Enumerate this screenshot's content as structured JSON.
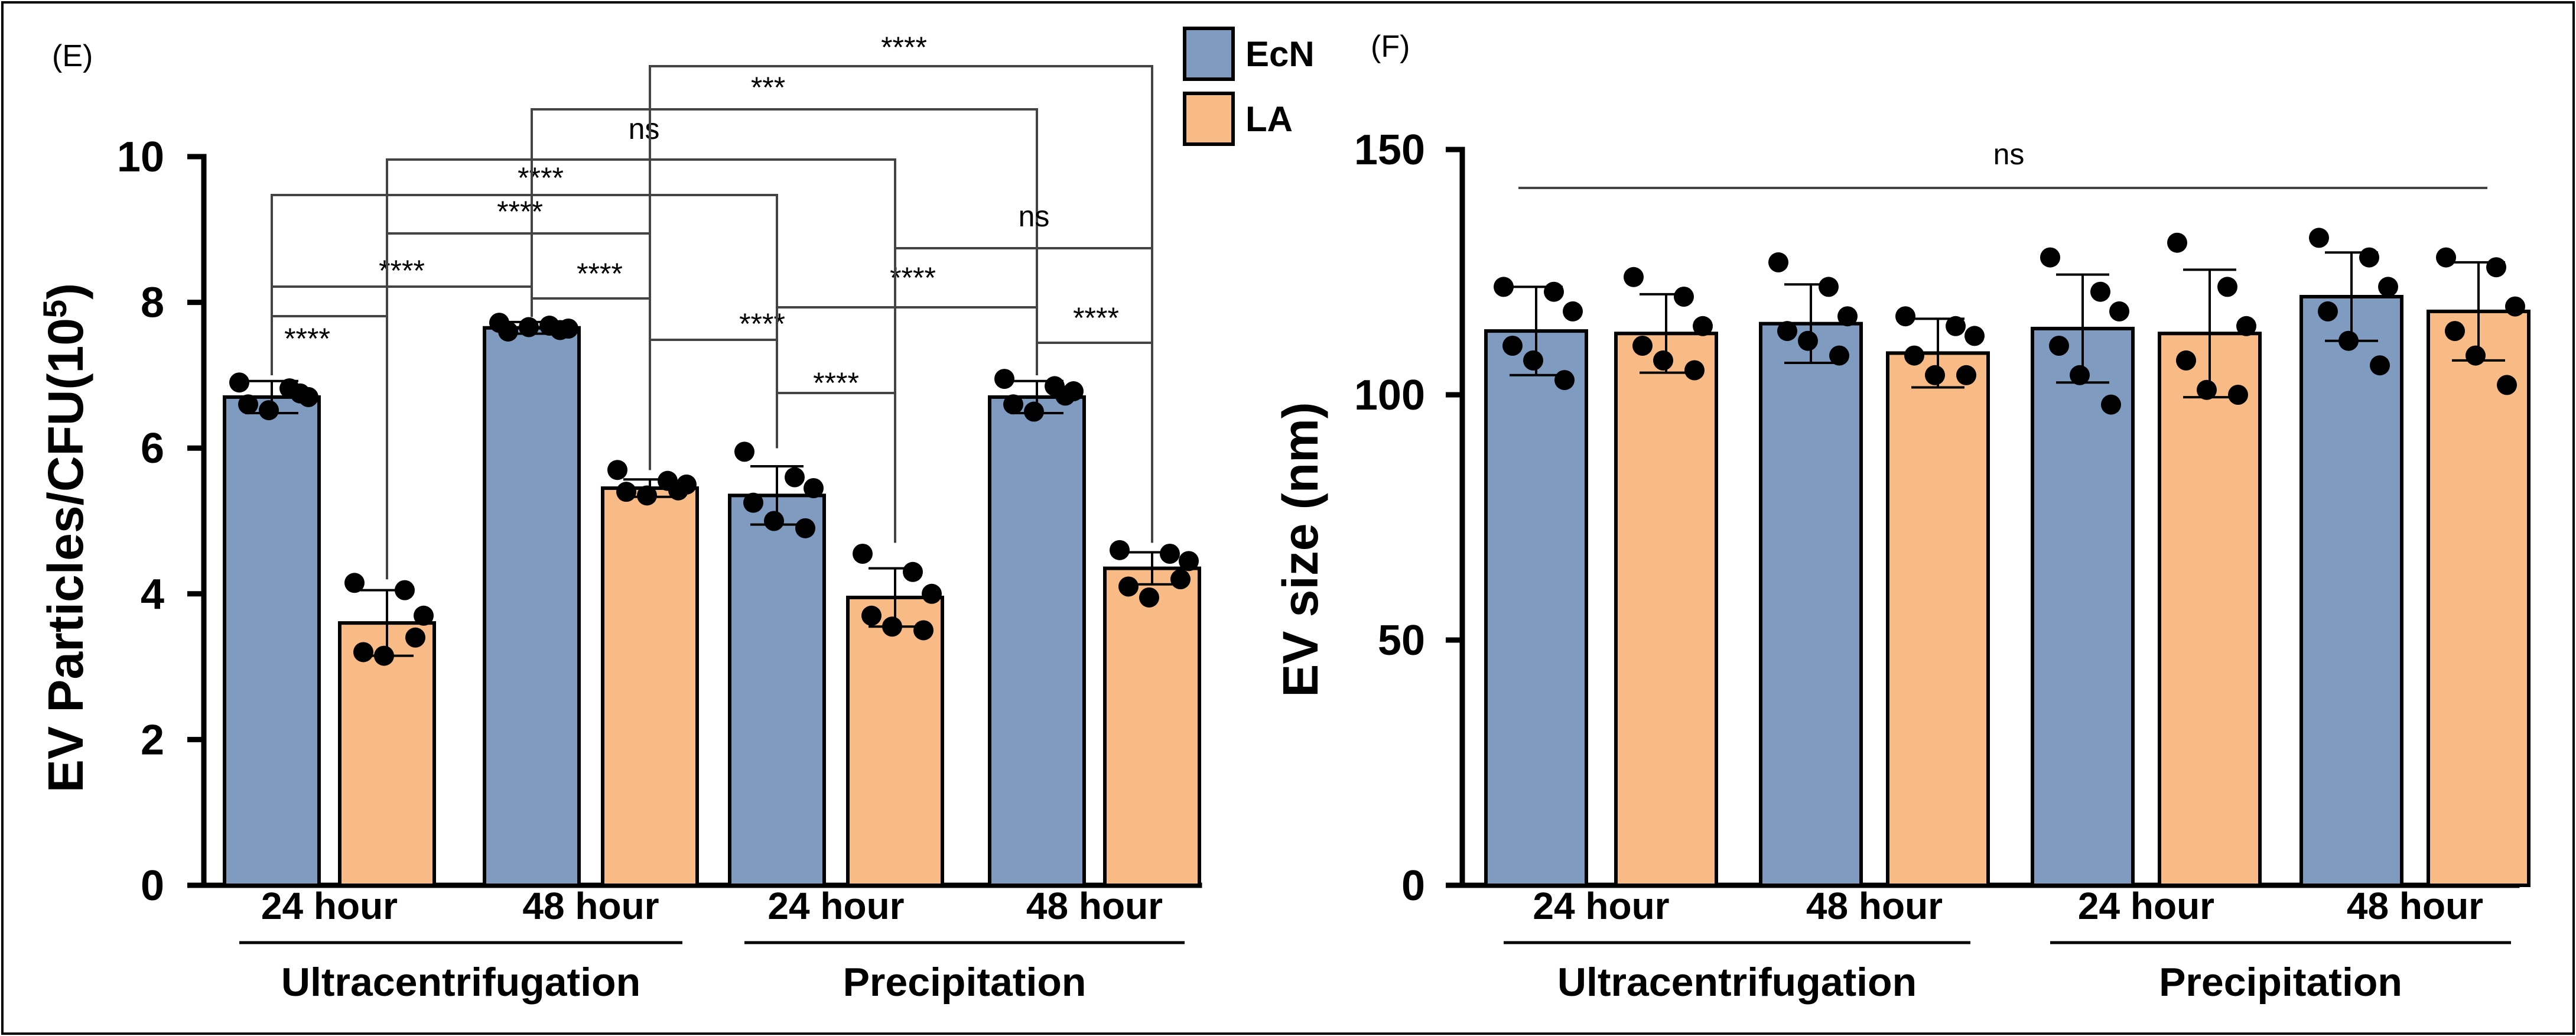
{
  "colors": {
    "EcN": "#7f9cc0",
    "LA": "#f9bb85"
  },
  "legend": [
    {
      "name": "EcN",
      "color": "#7f9cc0"
    },
    {
      "name": "LA",
      "color": "#f9bb85"
    }
  ],
  "chart_data": [
    {
      "panel": "(E)",
      "type": "bar",
      "ylabel": "EV Particles/CFU(10^5)",
      "ylabel_main": "EV Particles/CFU(10",
      "ylabel_sup": "5",
      "ylabel_tail": ")",
      "ylim": [
        0,
        10
      ],
      "yticks": [
        0,
        2,
        4,
        6,
        8,
        10
      ],
      "categories": [
        "24 hour",
        "48 hour",
        "24 hour",
        "48 hour"
      ],
      "groups": [
        {
          "label": "Ultracentrifugation",
          "categories": [
            0,
            1
          ]
        },
        {
          "label": "Precipitation",
          "categories": [
            2,
            3
          ]
        }
      ],
      "series": [
        {
          "name": "EcN",
          "values": [
            6.7,
            7.65,
            5.35,
            6.7
          ],
          "errors": [
            0.22,
            0.08,
            0.4,
            0.22
          ],
          "points": [
            [
              6.9,
              6.82,
              6.7,
              6.6,
              6.52,
              6.75
            ],
            [
              7.72,
              7.68,
              7.64,
              7.6,
              7.66,
              7.62
            ],
            [
              5.95,
              5.6,
              5.45,
              5.25,
              5.0,
              4.9
            ],
            [
              6.95,
              6.85,
              6.78,
              6.6,
              6.5,
              6.72
            ]
          ]
        },
        {
          "name": "LA",
          "values": [
            3.6,
            5.45,
            3.95,
            4.35
          ],
          "errors": [
            0.45,
            0.12,
            0.4,
            0.22
          ],
          "points": [
            [
              4.15,
              4.05,
              3.7,
              3.2,
              3.15,
              3.4
            ],
            [
              5.7,
              5.55,
              5.5,
              5.4,
              5.35,
              5.42
            ],
            [
              4.55,
              4.3,
              4.0,
              3.7,
              3.55,
              3.5
            ],
            [
              4.6,
              4.55,
              4.45,
              4.1,
              3.95,
              4.2
            ]
          ]
        }
      ],
      "significance": [
        {
          "label": "****",
          "from": "EcN 24h UC",
          "to": "LA 24h UC"
        },
        {
          "label": "****",
          "from": "EcN 24h UC",
          "to": "EcN 48h UC"
        },
        {
          "label": "****",
          "from": "EcN 48h UC",
          "to": "LA 48h UC"
        },
        {
          "label": "****",
          "from": "LA 24h UC",
          "to": "LA 48h UC"
        },
        {
          "label": "****",
          "from": "EcN 24h UC",
          "to": "EcN 24h P"
        },
        {
          "label": "ns",
          "from": "LA 24h UC",
          "to": "LA 24h P"
        },
        {
          "label": "***",
          "from": "EcN 48h UC",
          "to": "EcN 48h P"
        },
        {
          "label": "****",
          "from": "LA 48h UC",
          "to": "LA 48h P"
        },
        {
          "label": "****",
          "from": "EcN 24h P",
          "to": "LA 24h P"
        },
        {
          "label": "****",
          "from": "LA 48h UC",
          "to": "EcN 24h P"
        },
        {
          "label": "****",
          "from": "EcN 24h P",
          "to": "EcN 48h P"
        },
        {
          "label": "ns",
          "from": "LA 24h P",
          "to": "LA 48h P"
        },
        {
          "label": "****",
          "from": "EcN 48h P",
          "to": "LA 48h P"
        }
      ]
    },
    {
      "panel": "(F)",
      "type": "bar",
      "ylabel": "EV size (nm)",
      "ylim": [
        0,
        150
      ],
      "yticks": [
        0,
        50,
        100,
        150
      ],
      "categories": [
        "24 hour",
        "48 hour",
        "24 hour",
        "48 hour"
      ],
      "groups": [
        {
          "label": "Ultracentrifugation",
          "categories": [
            0,
            1
          ]
        },
        {
          "label": "Precipitation",
          "categories": [
            2,
            3
          ]
        }
      ],
      "series": [
        {
          "name": "EcN",
          "values": [
            113,
            114.5,
            113.5,
            120
          ],
          "errors": [
            9,
            8,
            11,
            9
          ],
          "points": [
            [
              122,
              121,
              117,
              110,
              107,
              103
            ],
            [
              127,
              122,
              116,
              113,
              111,
              108
            ],
            [
              128,
              121,
              117,
              110,
              104,
              98
            ],
            [
              132,
              128,
              122,
              117,
              111,
              106
            ]
          ]
        },
        {
          "name": "LA",
          "values": [
            112.5,
            108.5,
            112.5,
            117
          ],
          "errors": [
            8,
            7,
            13,
            10
          ],
          "points": [
            [
              124,
              120,
              114,
              110,
              107,
              105
            ],
            [
              116,
              114,
              112,
              108,
              104,
              104
            ],
            [
              131,
              122,
              114,
              107,
              101,
              100
            ],
            [
              128,
              126,
              118,
              113,
              108,
              102
            ]
          ]
        }
      ],
      "significance": [
        {
          "label": "ns",
          "from": "all",
          "to": "all"
        }
      ]
    }
  ]
}
